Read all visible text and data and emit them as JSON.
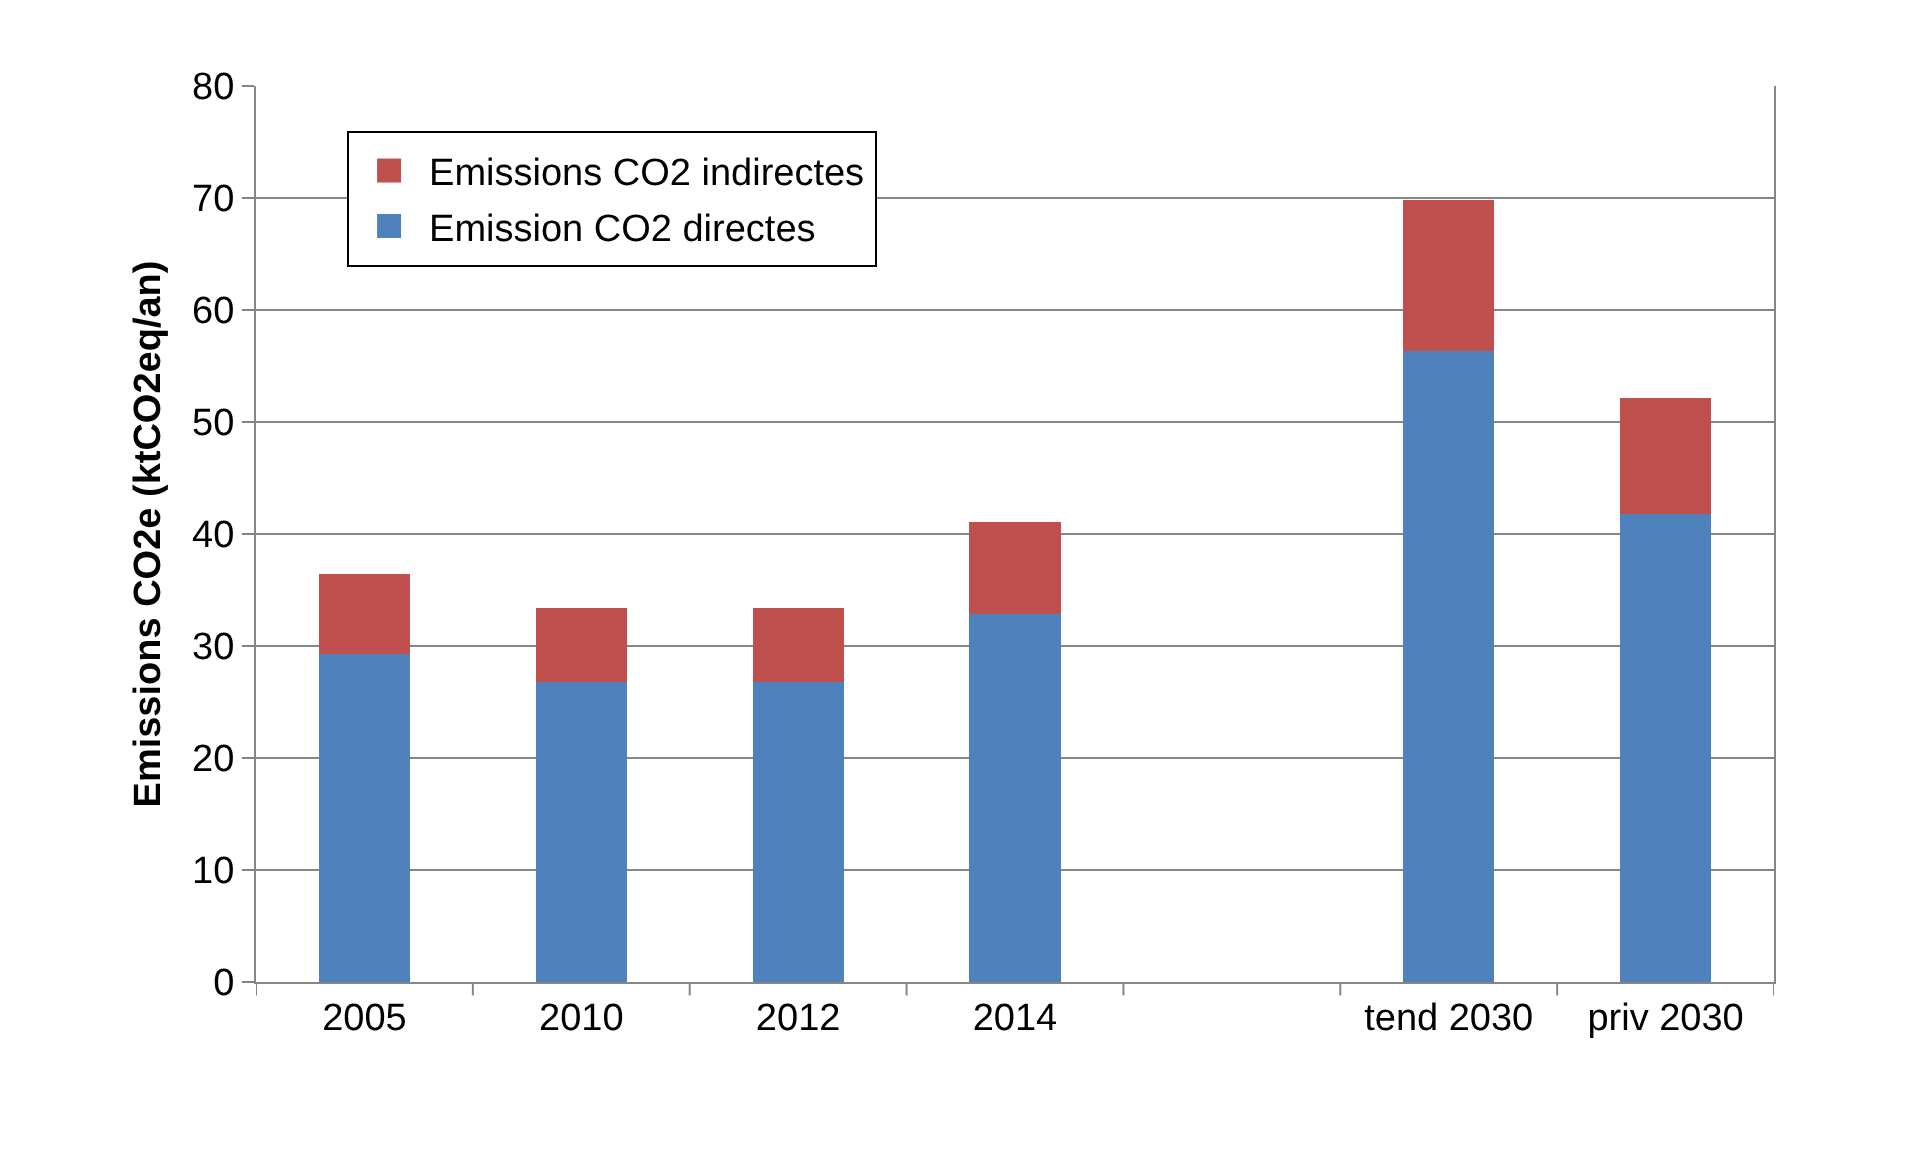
{
  "chart_data": {
    "type": "bar",
    "stacked": true,
    "ylabel": "Emissions CO2e (ktCO2eq/an)",
    "categories": [
      "2005",
      "2010",
      "2012",
      "2014",
      null,
      "tend 2030",
      "priv 2030"
    ],
    "series": [
      {
        "name": "Emission CO2 directes",
        "color": "#4f81bd",
        "values": [
          29.3,
          26.8,
          26.8,
          32.9,
          null,
          56.3,
          41.8
        ]
      },
      {
        "name": "Emissions CO2 indirectes",
        "color": "#c0504d",
        "values": [
          7.1,
          6.6,
          6.6,
          8.2,
          null,
          13.5,
          10.3
        ]
      }
    ],
    "ylim": [
      0,
      80
    ],
    "yticks": [
      0,
      10,
      20,
      30,
      40,
      50,
      60,
      70,
      80
    ],
    "grid": "y",
    "legend": "top left"
  }
}
